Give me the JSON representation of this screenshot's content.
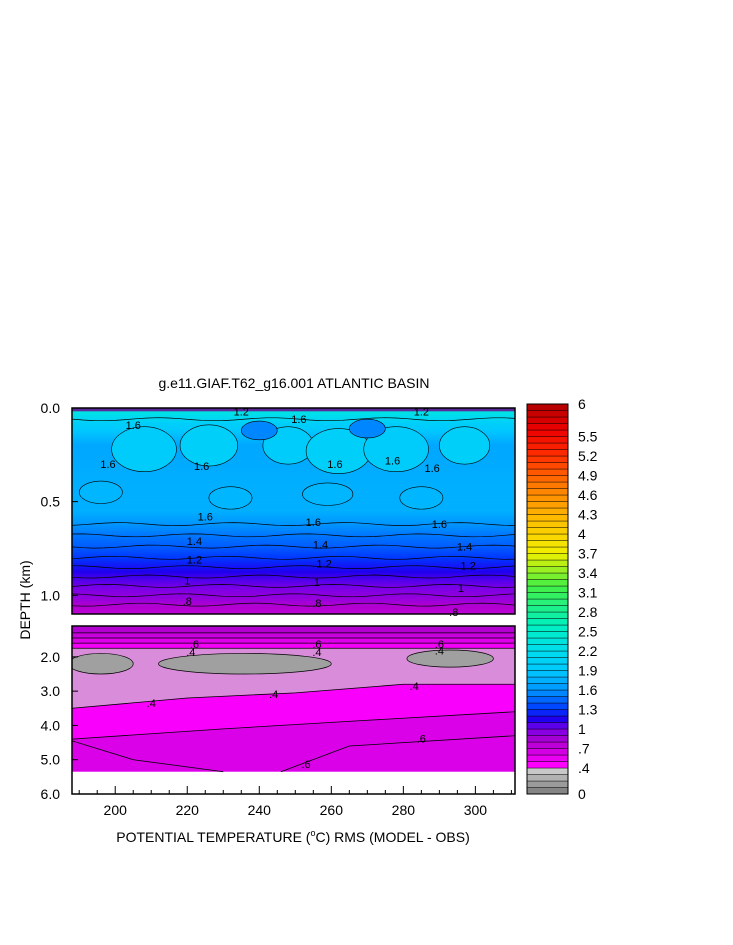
{
  "chart_data": {
    "type": "heatmap",
    "title": "g.e11.GIAF.T62_g16.001 ATLANTIC BASIN",
    "xlabel_parts": [
      "POTENTIAL TEMPERATURE (",
      "o",
      "C) RMS (MODEL - OBS)"
    ],
    "ylabel": "DEPTH (km)",
    "xlim": [
      188,
      311
    ],
    "x_ticks": [
      {
        "v": 200,
        "label": "200"
      },
      {
        "v": 220,
        "label": "220"
      },
      {
        "v": 240,
        "label": "240"
      },
      {
        "v": 260,
        "label": "260"
      },
      {
        "v": 280,
        "label": "280"
      },
      {
        "v": 300,
        "label": "300"
      }
    ],
    "upper_panel": {
      "ylim": [
        0,
        1.1
      ],
      "y_ticks": [
        {
          "v": 0,
          "label": "0.0"
        },
        {
          "v": 0.5,
          "label": "0.5"
        },
        {
          "v": 1.0,
          "label": "1.0"
        }
      ],
      "depth_profile": [
        {
          "d": 0.0,
          "v": 2.4
        },
        {
          "d": 0.08,
          "v": 2.0
        },
        {
          "d": 0.2,
          "v": 1.7
        },
        {
          "d": 0.4,
          "v": 1.75
        },
        {
          "d": 0.55,
          "v": 1.75
        },
        {
          "d": 0.62,
          "v": 1.6
        },
        {
          "d": 0.68,
          "v": 1.5
        },
        {
          "d": 0.75,
          "v": 1.4
        },
        {
          "d": 0.8,
          "v": 1.3
        },
        {
          "d": 0.85,
          "v": 1.2
        },
        {
          "d": 0.9,
          "v": 1.1
        },
        {
          "d": 0.96,
          "v": 1.0
        },
        {
          "d": 1.02,
          "v": 0.9
        },
        {
          "d": 1.06,
          "v": 0.8
        },
        {
          "d": 1.1,
          "v": 0.75
        }
      ],
      "contour_labels": [
        {
          "x": 205,
          "d": 0.09,
          "label": "1.6"
        },
        {
          "x": 198,
          "d": 0.3,
          "label": "1.6"
        },
        {
          "x": 224,
          "d": 0.31,
          "label": "1.6"
        },
        {
          "x": 251,
          "d": 0.06,
          "label": "1.6"
        },
        {
          "x": 261,
          "d": 0.3,
          "label": "1.6"
        },
        {
          "x": 277,
          "d": 0.28,
          "label": "1.6"
        },
        {
          "x": 288,
          "d": 0.32,
          "label": "1.6"
        },
        {
          "x": 225,
          "d": 0.58,
          "label": "1.6"
        },
        {
          "x": 255,
          "d": 0.61,
          "label": "1.6"
        },
        {
          "x": 290,
          "d": 0.62,
          "label": "1.6"
        },
        {
          "x": 222,
          "d": 0.71,
          "label": "1.4"
        },
        {
          "x": 257,
          "d": 0.73,
          "label": "1.4"
        },
        {
          "x": 297,
          "d": 0.74,
          "label": "1.4"
        },
        {
          "x": 222,
          "d": 0.81,
          "label": "1.2"
        },
        {
          "x": 258,
          "d": 0.83,
          "label": "1.2"
        },
        {
          "x": 298,
          "d": 0.84,
          "label": "1.2"
        },
        {
          "x": 220,
          "d": 0.92,
          "label": "1"
        },
        {
          "x": 256,
          "d": 0.93,
          "label": "1"
        },
        {
          "x": 296,
          "d": 0.96,
          "label": "1"
        },
        {
          "x": 220,
          "d": 1.03,
          "label": ".8"
        },
        {
          "x": 256,
          "d": 1.04,
          "label": ".8"
        },
        {
          "x": 294,
          "d": 1.09,
          "label": ".8"
        },
        {
          "x": 235,
          "d": 0.02,
          "label": "1.2"
        },
        {
          "x": 285,
          "d": 0.02,
          "label": "1.2"
        }
      ]
    },
    "lower_panel": {
      "ylim": [
        1.1,
        6.0
      ],
      "y_ticks": [
        {
          "v": 2.0,
          "label": "2.0"
        },
        {
          "v": 3.0,
          "label": "3.0"
        },
        {
          "v": 4.0,
          "label": "4.0"
        },
        {
          "v": 5.0,
          "label": "5.0"
        },
        {
          "v": 6.0,
          "label": "6.0"
        }
      ],
      "data_bottom_depth": 5.35,
      "contour_labels": [
        {
          "x": 222,
          "d": 1.62,
          "label": ".6"
        },
        {
          "x": 256,
          "d": 1.62,
          "label": ".6"
        },
        {
          "x": 290,
          "d": 1.62,
          "label": ".6"
        },
        {
          "x": 221,
          "d": 1.86,
          "label": ".4"
        },
        {
          "x": 256,
          "d": 1.86,
          "label": ".4"
        },
        {
          "x": 290,
          "d": 1.82,
          "label": ".4"
        },
        {
          "x": 210,
          "d": 3.35,
          "label": ".4"
        },
        {
          "x": 244,
          "d": 3.08,
          "label": ".4"
        },
        {
          "x": 283,
          "d": 2.85,
          "label": ".4"
        },
        {
          "x": 285,
          "d": 4.38,
          "label": ".6"
        },
        {
          "x": 253,
          "d": 5.12,
          "label": ".6"
        }
      ]
    },
    "colorbar": {
      "min": 0,
      "max": 6,
      "tick_labels": [
        {
          "v": 6,
          "label": "6"
        },
        {
          "v": 5.5,
          "label": "5.5"
        },
        {
          "v": 5.2,
          "label": "5.2"
        },
        {
          "v": 4.9,
          "label": "4.9"
        },
        {
          "v": 4.6,
          "label": "4.6"
        },
        {
          "v": 4.3,
          "label": "4.3"
        },
        {
          "v": 4,
          "label": "4"
        },
        {
          "v": 3.7,
          "label": "3.7"
        },
        {
          "v": 3.4,
          "label": "3.4"
        },
        {
          "v": 3.1,
          "label": "3.1"
        },
        {
          "v": 2.8,
          "label": "2.8"
        },
        {
          "v": 2.5,
          "label": "2.5"
        },
        {
          "v": 2.2,
          "label": "2.2"
        },
        {
          "v": 1.9,
          "label": "1.9"
        },
        {
          "v": 1.6,
          "label": "1.6"
        },
        {
          "v": 1.3,
          "label": "1.3"
        },
        {
          "v": 1,
          "label": "1"
        },
        {
          "v": 0.7,
          "label": ".7"
        },
        {
          "v": 0.4,
          "label": ".4"
        },
        {
          "v": 0,
          "label": "0"
        }
      ]
    }
  }
}
